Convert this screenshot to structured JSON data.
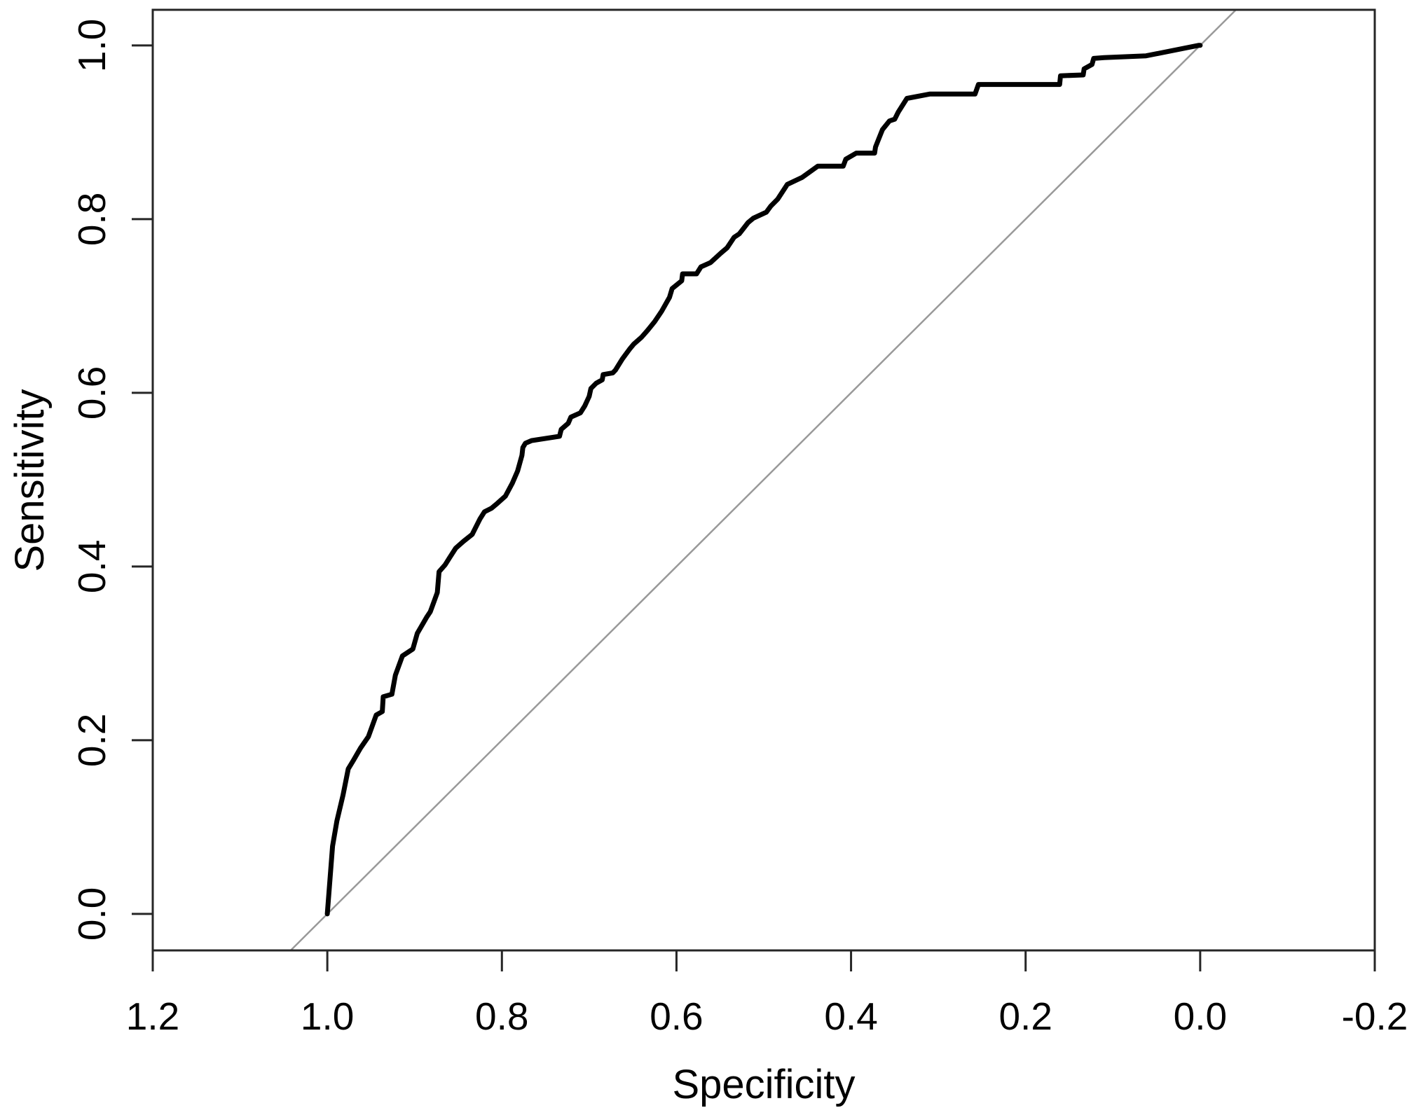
{
  "figure": {
    "background": "#ffffff",
    "plot_border_color": "#262626",
    "text_color": "#000000"
  },
  "chart_data": {
    "type": "line",
    "title": "",
    "xlabel": "Specificity",
    "ylabel": "Sensitivity",
    "grid": false,
    "legend": false,
    "x_axis": {
      "reversed": true,
      "range": [
        1.2,
        -0.2
      ],
      "ticks": [
        1.2,
        1.0,
        0.8,
        0.6,
        0.4,
        0.2,
        0.0,
        -0.2
      ],
      "tick_labels": [
        "1.2",
        "1.0",
        "0.8",
        "0.6",
        "0.4",
        "0.2",
        "0.0",
        "-0.2"
      ]
    },
    "y_axis": {
      "range": [
        -0.042,
        1.041
      ],
      "ticks": [
        0.0,
        0.2,
        0.4,
        0.6,
        0.8,
        1.0
      ],
      "tick_labels": [
        "0.0",
        "0.2",
        "0.4",
        "0.6",
        "0.8",
        "1.0"
      ]
    },
    "series": [
      {
        "name": "roc-curve",
        "color": "#000000",
        "stroke_width": 7,
        "points": [
          [
            1.0,
            0.0
          ],
          [
            0.994,
            0.078
          ],
          [
            0.989,
            0.107
          ],
          [
            0.982,
            0.137
          ],
          [
            0.976,
            0.167
          ],
          [
            0.97,
            0.177
          ],
          [
            0.962,
            0.191
          ],
          [
            0.953,
            0.204
          ],
          [
            0.944,
            0.229
          ],
          [
            0.937,
            0.233
          ],
          [
            0.936,
            0.25
          ],
          [
            0.926,
            0.253
          ],
          [
            0.922,
            0.275
          ],
          [
            0.914,
            0.297
          ],
          [
            0.902,
            0.305
          ],
          [
            0.897,
            0.323
          ],
          [
            0.886,
            0.342
          ],
          [
            0.882,
            0.348
          ],
          [
            0.874,
            0.37
          ],
          [
            0.872,
            0.394
          ],
          [
            0.865,
            0.402
          ],
          [
            0.86,
            0.41
          ],
          [
            0.853,
            0.421
          ],
          [
            0.844,
            0.429
          ],
          [
            0.834,
            0.437
          ],
          [
            0.825,
            0.455
          ],
          [
            0.82,
            0.463
          ],
          [
            0.812,
            0.467
          ],
          [
            0.805,
            0.473
          ],
          [
            0.796,
            0.481
          ],
          [
            0.788,
            0.496
          ],
          [
            0.782,
            0.51
          ],
          [
            0.777,
            0.528
          ],
          [
            0.776,
            0.537
          ],
          [
            0.773,
            0.542
          ],
          [
            0.766,
            0.545
          ],
          [
            0.734,
            0.55
          ],
          [
            0.732,
            0.558
          ],
          [
            0.724,
            0.565
          ],
          [
            0.721,
            0.572
          ],
          [
            0.71,
            0.577
          ],
          [
            0.705,
            0.585
          ],
          [
            0.7,
            0.596
          ],
          [
            0.698,
            0.605
          ],
          [
            0.692,
            0.611
          ],
          [
            0.685,
            0.615
          ],
          [
            0.684,
            0.621
          ],
          [
            0.673,
            0.623
          ],
          [
            0.67,
            0.626
          ],
          [
            0.662,
            0.639
          ],
          [
            0.654,
            0.65
          ],
          [
            0.649,
            0.656
          ],
          [
            0.64,
            0.664
          ],
          [
            0.633,
            0.672
          ],
          [
            0.625,
            0.682
          ],
          [
            0.617,
            0.694
          ],
          [
            0.608,
            0.71
          ],
          [
            0.605,
            0.72
          ],
          [
            0.594,
            0.729
          ],
          [
            0.593,
            0.737
          ],
          [
            0.577,
            0.737
          ],
          [
            0.572,
            0.745
          ],
          [
            0.561,
            0.75
          ],
          [
            0.549,
            0.761
          ],
          [
            0.542,
            0.767
          ],
          [
            0.534,
            0.779
          ],
          [
            0.528,
            0.783
          ],
          [
            0.518,
            0.796
          ],
          [
            0.512,
            0.801
          ],
          [
            0.497,
            0.808
          ],
          [
            0.492,
            0.815
          ],
          [
            0.484,
            0.823
          ],
          [
            0.473,
            0.84
          ],
          [
            0.456,
            0.848
          ],
          [
            0.438,
            0.861
          ],
          [
            0.409,
            0.861
          ],
          [
            0.406,
            0.869
          ],
          [
            0.394,
            0.876
          ],
          [
            0.373,
            0.876
          ],
          [
            0.372,
            0.883
          ],
          [
            0.368,
            0.893
          ],
          [
            0.364,
            0.903
          ],
          [
            0.356,
            0.913
          ],
          [
            0.35,
            0.915
          ],
          [
            0.346,
            0.923
          ],
          [
            0.336,
            0.939
          ],
          [
            0.31,
            0.944
          ],
          [
            0.258,
            0.944
          ],
          [
            0.254,
            0.955
          ],
          [
            0.161,
            0.955
          ],
          [
            0.16,
            0.965
          ],
          [
            0.134,
            0.966
          ],
          [
            0.133,
            0.973
          ],
          [
            0.124,
            0.978
          ],
          [
            0.122,
            0.985
          ],
          [
            0.11,
            0.986
          ],
          [
            0.062,
            0.988
          ],
          [
            0.002,
            1.0
          ],
          [
            0.0,
            1.0
          ]
        ]
      },
      {
        "name": "reference-diagonal",
        "color": "#999999",
        "stroke_width": 2.5,
        "points": [
          [
            1.042,
            -0.042
          ],
          [
            -0.041,
            1.041
          ]
        ]
      }
    ]
  }
}
